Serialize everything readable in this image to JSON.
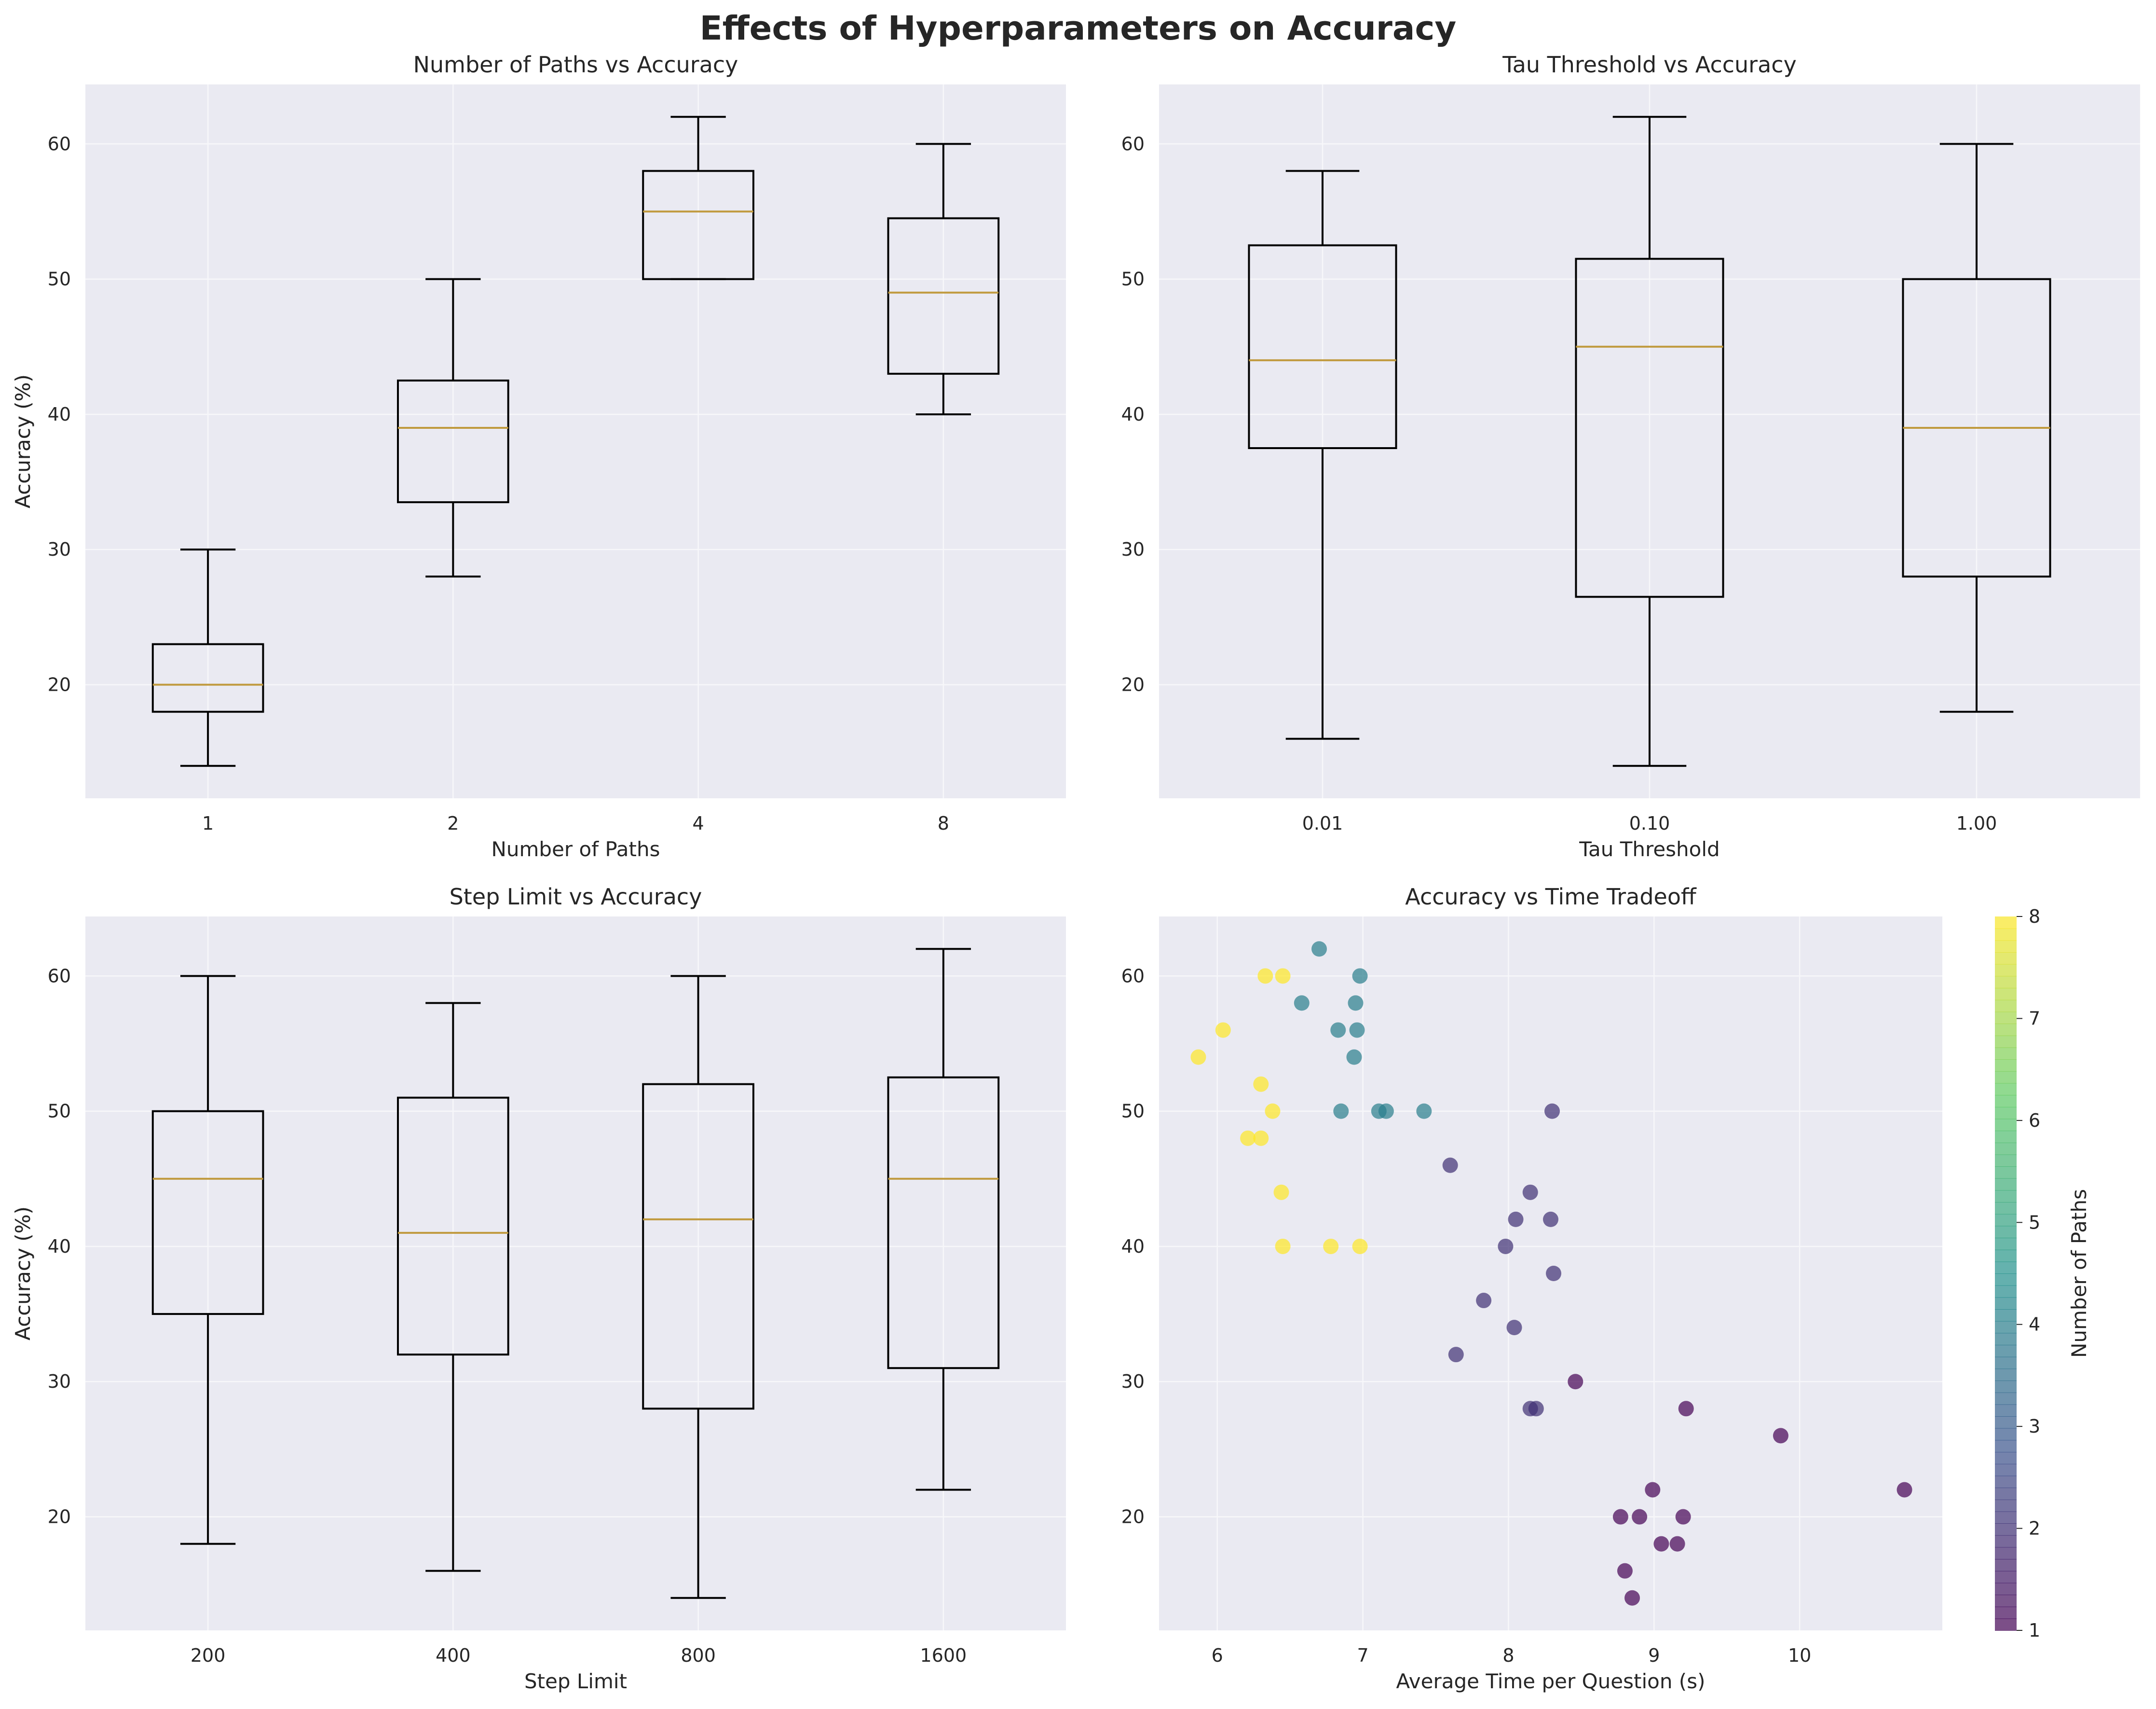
{
  "title": "Effects of Hyperparameters on Accuracy",
  "colors": {
    "panel_bg": "#EAEAF2",
    "grid": "#F7F7FA",
    "box_edge": "#000000",
    "median": "#C09A3E",
    "text": "#262626",
    "colormap": [
      "#440154",
      "#3B528B",
      "#21908C",
      "#5DC963",
      "#FDE725"
    ]
  },
  "chart_data": [
    {
      "type": "boxplot",
      "title": "Number of Paths vs Accuracy",
      "xlabel": "Number of Paths",
      "ylabel": "Accuracy (%)",
      "ylim": [
        11.6,
        64.4
      ],
      "yticks": [
        20,
        30,
        40,
        50,
        60
      ],
      "grid": true,
      "categories": [
        "1",
        "2",
        "4",
        "8"
      ],
      "boxes": [
        {
          "whisker_low": 14,
          "q1": 18,
          "median": 20,
          "q3": 23,
          "whisker_high": 30
        },
        {
          "whisker_low": 28,
          "q1": 33.5,
          "median": 39,
          "q3": 42.5,
          "whisker_high": 50
        },
        {
          "whisker_low": 50,
          "q1": 50,
          "median": 55,
          "q3": 58,
          "whisker_high": 62
        },
        {
          "whisker_low": 40,
          "q1": 43,
          "median": 49,
          "q3": 54.5,
          "whisker_high": 60
        }
      ]
    },
    {
      "type": "boxplot",
      "title": "Tau Threshold vs Accuracy",
      "xlabel": "Tau Threshold",
      "ylabel": "Accuracy (%)",
      "ylim": [
        11.6,
        64.4
      ],
      "yticks": [
        20,
        30,
        40,
        50,
        60
      ],
      "grid": true,
      "categories": [
        "0.01",
        "0.10",
        "1.00"
      ],
      "boxes": [
        {
          "whisker_low": 16,
          "q1": 37.5,
          "median": 44,
          "q3": 52.5,
          "whisker_high": 58
        },
        {
          "whisker_low": 14,
          "q1": 26.5,
          "median": 45,
          "q3": 51.5,
          "whisker_high": 62
        },
        {
          "whisker_low": 18,
          "q1": 28,
          "median": 39,
          "q3": 50,
          "whisker_high": 60
        }
      ]
    },
    {
      "type": "boxplot",
      "title": "Step Limit vs Accuracy",
      "xlabel": "Step Limit",
      "ylabel": "Accuracy (%)",
      "ylim": [
        11.6,
        64.4
      ],
      "yticks": [
        20,
        30,
        40,
        50,
        60
      ],
      "grid": true,
      "categories": [
        "200",
        "400",
        "800",
        "1600"
      ],
      "boxes": [
        {
          "whisker_low": 18,
          "q1": 35,
          "median": 45,
          "q3": 50,
          "whisker_high": 60
        },
        {
          "whisker_low": 16,
          "q1": 32,
          "median": 41,
          "q3": 51,
          "whisker_high": 58
        },
        {
          "whisker_low": 14,
          "q1": 28,
          "median": 42,
          "q3": 52,
          "whisker_high": 60
        },
        {
          "whisker_low": 22,
          "q1": 31,
          "median": 45,
          "q3": 52.5,
          "whisker_high": 62
        }
      ]
    },
    {
      "type": "scatter",
      "title": "Accuracy vs Time Tradeoff",
      "xlabel": "Average Time per Question (s)",
      "ylabel": "Accuracy (%)",
      "xlim": [
        5.6,
        10.98
      ],
      "ylim": [
        11.6,
        64.4
      ],
      "xticks": [
        6,
        7,
        8,
        9,
        10
      ],
      "yticks": [
        20,
        30,
        40,
        50,
        60
      ],
      "grid": true,
      "colorbar": {
        "label": "Number of Paths",
        "min": 1,
        "max": 8,
        "ticks": [
          1,
          2,
          3,
          4,
          5,
          6,
          7,
          8
        ]
      },
      "points": [
        {
          "x": 5.87,
          "y": 54,
          "paths": 8
        },
        {
          "x": 6.04,
          "y": 56,
          "paths": 8
        },
        {
          "x": 6.33,
          "y": 60,
          "paths": 8
        },
        {
          "x": 6.45,
          "y": 60,
          "paths": 8
        },
        {
          "x": 6.3,
          "y": 52,
          "paths": 8
        },
        {
          "x": 6.38,
          "y": 50,
          "paths": 8
        },
        {
          "x": 6.21,
          "y": 48,
          "paths": 8
        },
        {
          "x": 6.3,
          "y": 48,
          "paths": 8
        },
        {
          "x": 6.44,
          "y": 44,
          "paths": 8
        },
        {
          "x": 6.45,
          "y": 40,
          "paths": 8
        },
        {
          "x": 6.78,
          "y": 40,
          "paths": 8
        },
        {
          "x": 6.98,
          "y": 40,
          "paths": 8
        },
        {
          "x": 6.7,
          "y": 62,
          "paths": 4
        },
        {
          "x": 6.98,
          "y": 60,
          "paths": 4
        },
        {
          "x": 6.58,
          "y": 58,
          "paths": 4
        },
        {
          "x": 6.95,
          "y": 58,
          "paths": 4
        },
        {
          "x": 6.83,
          "y": 56,
          "paths": 4
        },
        {
          "x": 6.96,
          "y": 56,
          "paths": 4
        },
        {
          "x": 6.94,
          "y": 54,
          "paths": 4
        },
        {
          "x": 6.85,
          "y": 50,
          "paths": 4
        },
        {
          "x": 7.11,
          "y": 50,
          "paths": 4
        },
        {
          "x": 7.16,
          "y": 50,
          "paths": 4
        },
        {
          "x": 7.42,
          "y": 50,
          "paths": 4
        },
        {
          "x": 8.3,
          "y": 50,
          "paths": 2
        },
        {
          "x": 7.6,
          "y": 46,
          "paths": 2
        },
        {
          "x": 8.15,
          "y": 44,
          "paths": 2
        },
        {
          "x": 8.05,
          "y": 42,
          "paths": 2
        },
        {
          "x": 8.29,
          "y": 42,
          "paths": 2
        },
        {
          "x": 7.98,
          "y": 40,
          "paths": 2
        },
        {
          "x": 8.31,
          "y": 38,
          "paths": 2
        },
        {
          "x": 7.83,
          "y": 36,
          "paths": 2
        },
        {
          "x": 8.04,
          "y": 34,
          "paths": 2
        },
        {
          "x": 7.64,
          "y": 32,
          "paths": 2
        },
        {
          "x": 8.15,
          "y": 28,
          "paths": 2
        },
        {
          "x": 8.19,
          "y": 28,
          "paths": 2
        },
        {
          "x": 8.46,
          "y": 30,
          "paths": 1
        },
        {
          "x": 9.22,
          "y": 28,
          "paths": 1
        },
        {
          "x": 9.87,
          "y": 26,
          "paths": 1
        },
        {
          "x": 10.72,
          "y": 22,
          "paths": 1
        },
        {
          "x": 8.99,
          "y": 22,
          "paths": 1
        },
        {
          "x": 8.77,
          "y": 20,
          "paths": 1
        },
        {
          "x": 8.9,
          "y": 20,
          "paths": 1
        },
        {
          "x": 9.2,
          "y": 20,
          "paths": 1
        },
        {
          "x": 9.05,
          "y": 18,
          "paths": 1
        },
        {
          "x": 9.16,
          "y": 18,
          "paths": 1
        },
        {
          "x": 8.8,
          "y": 16,
          "paths": 1
        },
        {
          "x": 8.85,
          "y": 14,
          "paths": 1
        }
      ]
    }
  ]
}
